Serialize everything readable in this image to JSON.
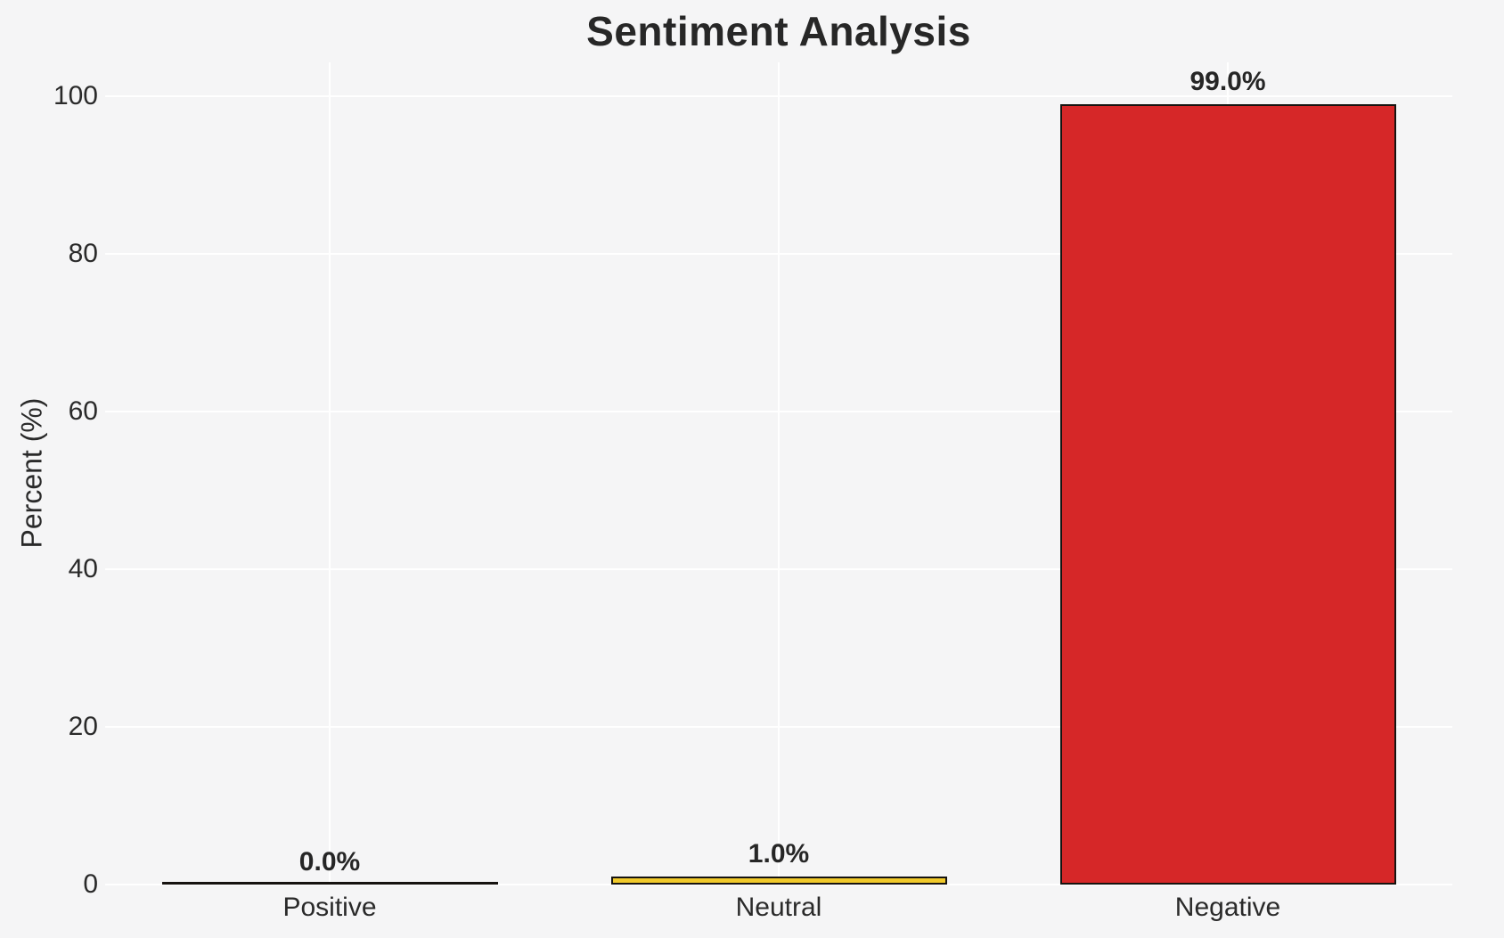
{
  "chart_data": {
    "type": "bar",
    "title": "Sentiment Analysis",
    "xlabel": "",
    "ylabel": "Percent (%)",
    "categories": [
      "Positive",
      "Neutral",
      "Negative"
    ],
    "values": [
      0.0,
      1.0,
      99.0
    ],
    "value_labels": [
      "0.0%",
      "1.0%",
      "99.0%"
    ],
    "bar_colors": [
      "transparent",
      "#F0C92A",
      "#D62728"
    ],
    "bar_edge_color": "#161310",
    "yticks": [
      0,
      20,
      40,
      60,
      80,
      100
    ],
    "ylim": [
      0,
      104
    ],
    "grid": true,
    "grid_color": "#ffffff",
    "background_color": "#f5f5f6",
    "text_color": "#2a2a2a",
    "legend": null
  }
}
